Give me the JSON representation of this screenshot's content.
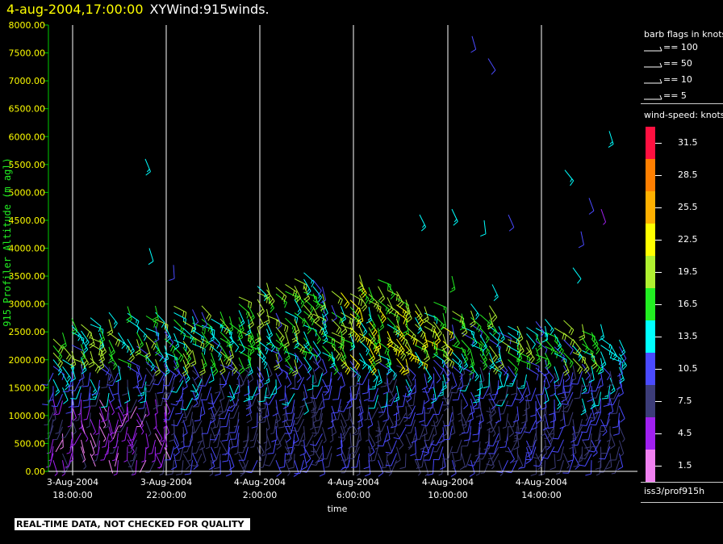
{
  "header": {
    "datetime": "4-aug-2004,17:00:00",
    "product": "XYWind:915winds."
  },
  "chart_data": {
    "type": "wind-barb time-height",
    "ylabel": "915 Profiler Altitude (m agl)",
    "xlabel": "time",
    "ylim": [
      0,
      8000
    ],
    "y_ticks": [
      "0.00",
      "500.00",
      "1000.00",
      "1500.00",
      "2000.00",
      "2500.00",
      "3000.00",
      "3500.00",
      "4000.00",
      "4500.00",
      "5000.00",
      "5500.00",
      "6000.00",
      "6500.00",
      "7000.00",
      "7500.00",
      "8000.00"
    ],
    "x_ticks": [
      {
        "date": "3-Aug-2004",
        "time": "18:00:00"
      },
      {
        "date": "3-Aug-2004",
        "time": "22:00:00"
      },
      {
        "date": "4-Aug-2004",
        "time": "2:00:00"
      },
      {
        "date": "4-Aug-2004",
        "time": "6:00:00"
      },
      {
        "date": "4-Aug-2004",
        "time": "10:00:00"
      },
      {
        "date": "4-Aug-2004",
        "time": "14:00:00"
      }
    ],
    "vertical_gridlines": true,
    "colors": {
      "axis": "#00cc00",
      "ytick_text": "#ffff00",
      "gridline": "#ffffff"
    },
    "barb_key": {
      "title": "barb flags in knots",
      "entries": [
        "== 100",
        "== 50",
        "== 10",
        "== 5"
      ]
    },
    "colorbar": {
      "title": "wind-speed: knots",
      "levels": [
        {
          "label": "31.5",
          "color": "#ff1040"
        },
        {
          "label": "28.5",
          "color": "#ff7f00"
        },
        {
          "label": "25.5",
          "color": "#ffb000"
        },
        {
          "label": "22.5",
          "color": "#ffff00"
        },
        {
          "label": "19.5",
          "color": "#b0f030"
        },
        {
          "label": "16.5",
          "color": "#22ee22"
        },
        {
          "label": "13.5",
          "color": "#00ffff"
        },
        {
          "label": "10.5",
          "color": "#4a4aff"
        },
        {
          "label": "7.5",
          "color": "#3c3c78"
        },
        {
          "label": "4.5",
          "color": "#a020f0"
        },
        {
          "label": "1.5",
          "color": "#f080f0"
        }
      ]
    },
    "station": "iss3/prof915h"
  },
  "qc_note": "REAL-TIME DATA, NOT CHECKED FOR QUALITY"
}
